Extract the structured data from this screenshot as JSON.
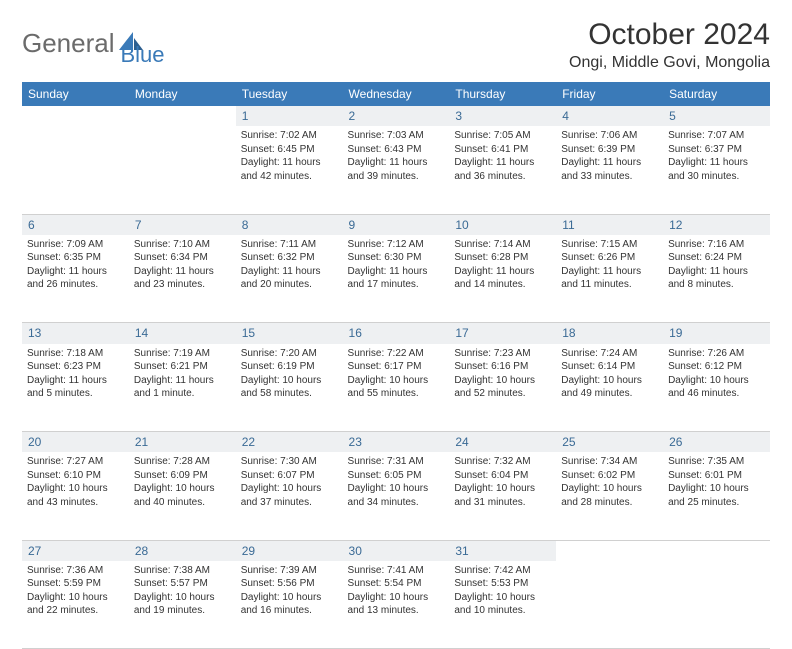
{
  "brand": {
    "part1": "General",
    "part2": "Blue"
  },
  "title": "October 2024",
  "location": "Ongi, Middle Govi, Mongolia",
  "colors": {
    "header_bg": "#3a7ab8",
    "header_text": "#ffffff",
    "daynum_bg": "#eef0f2",
    "daynum_text": "#3a6a95",
    "body_text": "#333333",
    "border": "#d0d0d0",
    "logo_gray": "#6b6b6b",
    "logo_blue": "#3a7ab8"
  },
  "day_headers": [
    "Sunday",
    "Monday",
    "Tuesday",
    "Wednesday",
    "Thursday",
    "Friday",
    "Saturday"
  ],
  "weeks": [
    {
      "nums": [
        "",
        "",
        "1",
        "2",
        "3",
        "4",
        "5"
      ],
      "cells": [
        "",
        "",
        "Sunrise: 7:02 AM\nSunset: 6:45 PM\nDaylight: 11 hours and 42 minutes.",
        "Sunrise: 7:03 AM\nSunset: 6:43 PM\nDaylight: 11 hours and 39 minutes.",
        "Sunrise: 7:05 AM\nSunset: 6:41 PM\nDaylight: 11 hours and 36 minutes.",
        "Sunrise: 7:06 AM\nSunset: 6:39 PM\nDaylight: 11 hours and 33 minutes.",
        "Sunrise: 7:07 AM\nSunset: 6:37 PM\nDaylight: 11 hours and 30 minutes."
      ]
    },
    {
      "nums": [
        "6",
        "7",
        "8",
        "9",
        "10",
        "11",
        "12"
      ],
      "cells": [
        "Sunrise: 7:09 AM\nSunset: 6:35 PM\nDaylight: 11 hours and 26 minutes.",
        "Sunrise: 7:10 AM\nSunset: 6:34 PM\nDaylight: 11 hours and 23 minutes.",
        "Sunrise: 7:11 AM\nSunset: 6:32 PM\nDaylight: 11 hours and 20 minutes.",
        "Sunrise: 7:12 AM\nSunset: 6:30 PM\nDaylight: 11 hours and 17 minutes.",
        "Sunrise: 7:14 AM\nSunset: 6:28 PM\nDaylight: 11 hours and 14 minutes.",
        "Sunrise: 7:15 AM\nSunset: 6:26 PM\nDaylight: 11 hours and 11 minutes.",
        "Sunrise: 7:16 AM\nSunset: 6:24 PM\nDaylight: 11 hours and 8 minutes."
      ]
    },
    {
      "nums": [
        "13",
        "14",
        "15",
        "16",
        "17",
        "18",
        "19"
      ],
      "cells": [
        "Sunrise: 7:18 AM\nSunset: 6:23 PM\nDaylight: 11 hours and 5 minutes.",
        "Sunrise: 7:19 AM\nSunset: 6:21 PM\nDaylight: 11 hours and 1 minute.",
        "Sunrise: 7:20 AM\nSunset: 6:19 PM\nDaylight: 10 hours and 58 minutes.",
        "Sunrise: 7:22 AM\nSunset: 6:17 PM\nDaylight: 10 hours and 55 minutes.",
        "Sunrise: 7:23 AM\nSunset: 6:16 PM\nDaylight: 10 hours and 52 minutes.",
        "Sunrise: 7:24 AM\nSunset: 6:14 PM\nDaylight: 10 hours and 49 minutes.",
        "Sunrise: 7:26 AM\nSunset: 6:12 PM\nDaylight: 10 hours and 46 minutes."
      ]
    },
    {
      "nums": [
        "20",
        "21",
        "22",
        "23",
        "24",
        "25",
        "26"
      ],
      "cells": [
        "Sunrise: 7:27 AM\nSunset: 6:10 PM\nDaylight: 10 hours and 43 minutes.",
        "Sunrise: 7:28 AM\nSunset: 6:09 PM\nDaylight: 10 hours and 40 minutes.",
        "Sunrise: 7:30 AM\nSunset: 6:07 PM\nDaylight: 10 hours and 37 minutes.",
        "Sunrise: 7:31 AM\nSunset: 6:05 PM\nDaylight: 10 hours and 34 minutes.",
        "Sunrise: 7:32 AM\nSunset: 6:04 PM\nDaylight: 10 hours and 31 minutes.",
        "Sunrise: 7:34 AM\nSunset: 6:02 PM\nDaylight: 10 hours and 28 minutes.",
        "Sunrise: 7:35 AM\nSunset: 6:01 PM\nDaylight: 10 hours and 25 minutes."
      ]
    },
    {
      "nums": [
        "27",
        "28",
        "29",
        "30",
        "31",
        "",
        ""
      ],
      "cells": [
        "Sunrise: 7:36 AM\nSunset: 5:59 PM\nDaylight: 10 hours and 22 minutes.",
        "Sunrise: 7:38 AM\nSunset: 5:57 PM\nDaylight: 10 hours and 19 minutes.",
        "Sunrise: 7:39 AM\nSunset: 5:56 PM\nDaylight: 10 hours and 16 minutes.",
        "Sunrise: 7:41 AM\nSunset: 5:54 PM\nDaylight: 10 hours and 13 minutes.",
        "Sunrise: 7:42 AM\nSunset: 5:53 PM\nDaylight: 10 hours and 10 minutes.",
        "",
        ""
      ]
    }
  ]
}
